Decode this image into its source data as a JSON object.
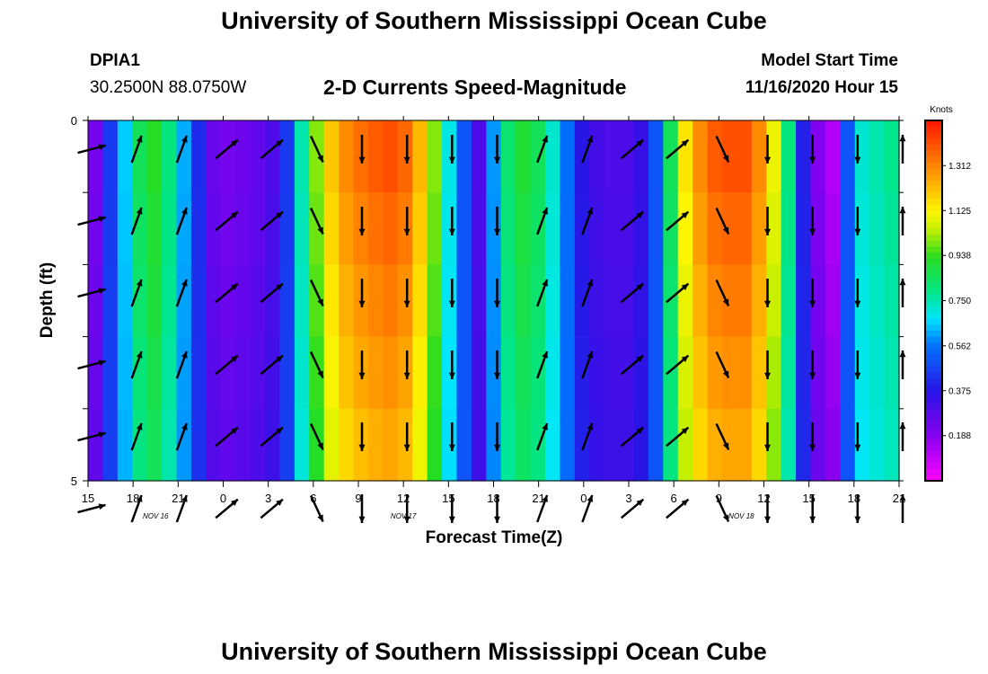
{
  "header": {
    "title_top": "University of Southern Mississippi Ocean Cube",
    "title_bottom": "University of Southern Mississippi Ocean Cube",
    "station": "DPIA1",
    "coords": "30.2500N 88.0750W",
    "plot_title": "2-D Currents Speed-Magnitude",
    "model_start_label": "Model Start Time",
    "model_start_value": "11/16/2020 Hour 15"
  },
  "chart_data": {
    "type": "heatmap",
    "title": "2-D Currents Speed-Magnitude",
    "xlabel": "Forecast Time(Z)",
    "ylabel": "Depth (ft)",
    "x_tick_labels": [
      "15",
      "18",
      "21",
      "0",
      "3",
      "6",
      "9",
      "12",
      "15",
      "18",
      "21",
      "0",
      "3",
      "6",
      "9",
      "12",
      "15",
      "18",
      "21"
    ],
    "x_hours": [
      0,
      3,
      6,
      9,
      12,
      15,
      18,
      21,
      24,
      27,
      30,
      33,
      36,
      39,
      42,
      45,
      48,
      51,
      54
    ],
    "day_labels": [
      {
        "text": "NOV  16",
        "hour": 4.5
      },
      {
        "text": "NOV  17",
        "hour": 21
      },
      {
        "text": "NOV  18",
        "hour": 43.5
      }
    ],
    "y_tick_labels": [
      "0",
      "5"
    ],
    "ylim": [
      0,
      5
    ],
    "depth_rows": 5,
    "color_units": "Knots",
    "colorbar_ticks": [
      "0.188",
      "0.375",
      "0.562",
      "0.750",
      "0.938",
      "1.125",
      "1.312"
    ],
    "colorbar_range": [
      0,
      1.5
    ],
    "speed_by_hour": [
      0.22,
      0.45,
      0.65,
      0.85,
      0.92,
      0.8,
      0.62,
      0.42,
      0.25,
      0.22,
      0.24,
      0.26,
      0.3,
      0.45,
      0.75,
      1.0,
      1.2,
      1.3,
      1.35,
      1.38,
      1.4,
      1.36,
      1.22,
      1.0,
      0.7,
      0.5,
      0.3,
      0.6,
      0.82,
      0.9,
      0.85,
      0.72,
      0.55,
      0.38,
      0.32,
      0.3,
      0.3,
      0.35,
      0.5,
      0.85,
      1.15,
      1.3,
      1.38,
      1.4,
      1.4,
      1.3,
      1.1,
      0.8,
      0.4,
      0.2,
      0.12,
      0.5,
      0.72,
      0.75,
      0.78
    ],
    "arrow_hours": [
      0,
      3,
      6,
      9,
      12,
      15,
      18,
      21,
      24,
      27,
      30,
      33,
      36,
      39,
      42,
      45,
      48,
      51,
      54
    ],
    "arrow_dirs": [
      "ENE",
      "NNE",
      "NNE",
      "NE",
      "NE",
      "SSE",
      "S",
      "S",
      "S",
      "S",
      "NNE",
      "NNE",
      "NE",
      "NE",
      "SSE",
      "S",
      "S",
      "S",
      "N"
    ]
  }
}
